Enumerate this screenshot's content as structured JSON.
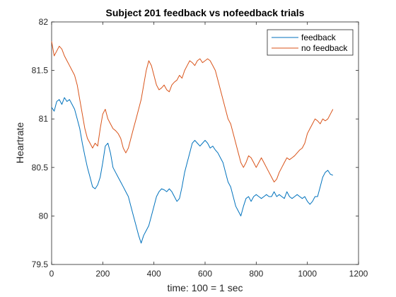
{
  "chart_data": {
    "type": "line",
    "title": "Subject 201 feedback vs nofeedback trials",
    "xlabel": "time: 100 = 1 sec",
    "ylabel": "Heartrate",
    "xlim": [
      0,
      1200
    ],
    "ylim": [
      79.5,
      82
    ],
    "xticks": [
      0,
      200,
      400,
      600,
      800,
      1000,
      1200
    ],
    "yticks": [
      79.5,
      80,
      80.5,
      81,
      81.5,
      82
    ],
    "xtick_labels": [
      "0",
      "200",
      "400",
      "600",
      "800",
      "1000",
      "1200"
    ],
    "ytick_labels": [
      "79.5",
      "80",
      "80.5",
      "81",
      "81.5",
      "82"
    ],
    "grid": false,
    "legend_position": "top-right",
    "series": [
      {
        "name": "feedback",
        "color": "#0072BD",
        "x": [
          0,
          10,
          20,
          30,
          40,
          50,
          60,
          70,
          80,
          90,
          100,
          110,
          120,
          130,
          140,
          150,
          160,
          170,
          180,
          190,
          200,
          210,
          220,
          230,
          240,
          250,
          260,
          270,
          280,
          290,
          300,
          310,
          320,
          330,
          340,
          350,
          360,
          370,
          380,
          390,
          400,
          410,
          420,
          430,
          440,
          450,
          460,
          470,
          480,
          490,
          500,
          510,
          520,
          530,
          540,
          550,
          560,
          570,
          580,
          590,
          600,
          610,
          620,
          630,
          640,
          650,
          660,
          670,
          680,
          690,
          700,
          710,
          720,
          730,
          740,
          750,
          760,
          770,
          780,
          790,
          800,
          810,
          820,
          830,
          840,
          850,
          860,
          870,
          880,
          890,
          900,
          910,
          920,
          930,
          940,
          950,
          960,
          970,
          980,
          990,
          1000,
          1010,
          1020,
          1030,
          1040,
          1050,
          1060,
          1070,
          1080,
          1090,
          1100
        ],
        "y": [
          81.12,
          81.08,
          81.18,
          81.2,
          81.15,
          81.22,
          81.18,
          81.2,
          81.15,
          81.1,
          81.0,
          80.9,
          80.75,
          80.62,
          80.5,
          80.4,
          80.3,
          80.28,
          80.32,
          80.4,
          80.55,
          80.72,
          80.75,
          80.65,
          80.5,
          80.45,
          80.4,
          80.35,
          80.3,
          80.25,
          80.2,
          80.1,
          80.0,
          79.9,
          79.8,
          79.72,
          79.8,
          79.85,
          79.9,
          80.0,
          80.1,
          80.2,
          80.25,
          80.28,
          80.27,
          80.25,
          80.28,
          80.25,
          80.2,
          80.15,
          80.18,
          80.3,
          80.45,
          80.55,
          80.65,
          80.75,
          80.78,
          80.75,
          80.72,
          80.75,
          80.78,
          80.75,
          80.7,
          80.72,
          80.68,
          80.65,
          80.6,
          80.55,
          80.45,
          80.35,
          80.3,
          80.2,
          80.1,
          80.05,
          80.0,
          80.1,
          80.18,
          80.2,
          80.15,
          80.2,
          80.22,
          80.2,
          80.18,
          80.2,
          80.22,
          80.2,
          80.2,
          80.25,
          80.2,
          80.22,
          80.2,
          80.18,
          80.25,
          80.2,
          80.18,
          80.2,
          80.22,
          80.2,
          80.18,
          80.2,
          80.15,
          80.12,
          80.15,
          80.2,
          80.2,
          80.3,
          80.4,
          80.45,
          80.47,
          80.43,
          80.42
        ]
      },
      {
        "name": "no feedback",
        "color": "#D95319",
        "x": [
          0,
          10,
          20,
          30,
          40,
          50,
          60,
          70,
          80,
          90,
          100,
          110,
          120,
          130,
          140,
          150,
          160,
          170,
          180,
          190,
          200,
          210,
          220,
          230,
          240,
          250,
          260,
          270,
          280,
          290,
          300,
          310,
          320,
          330,
          340,
          350,
          360,
          370,
          380,
          390,
          400,
          410,
          420,
          430,
          440,
          450,
          460,
          470,
          480,
          490,
          500,
          510,
          520,
          530,
          540,
          550,
          560,
          570,
          580,
          590,
          600,
          610,
          620,
          630,
          640,
          650,
          660,
          670,
          680,
          690,
          700,
          710,
          720,
          730,
          740,
          750,
          760,
          770,
          780,
          790,
          800,
          810,
          820,
          830,
          840,
          850,
          860,
          870,
          880,
          890,
          900,
          910,
          920,
          930,
          940,
          950,
          960,
          970,
          980,
          990,
          1000,
          1010,
          1020,
          1030,
          1040,
          1050,
          1060,
          1070,
          1080,
          1090,
          1100
        ],
        "y": [
          81.8,
          81.65,
          81.7,
          81.75,
          81.72,
          81.65,
          81.6,
          81.55,
          81.5,
          81.45,
          81.35,
          81.2,
          81.05,
          80.9,
          80.8,
          80.75,
          80.7,
          80.75,
          80.72,
          80.9,
          81.05,
          81.1,
          81.0,
          80.95,
          80.9,
          80.88,
          80.85,
          80.8,
          80.7,
          80.65,
          80.7,
          80.8,
          80.9,
          81.0,
          81.1,
          81.2,
          81.35,
          81.5,
          81.6,
          81.55,
          81.45,
          81.35,
          81.3,
          81.32,
          81.35,
          81.3,
          81.28,
          81.35,
          81.38,
          81.4,
          81.45,
          81.42,
          81.5,
          81.55,
          81.6,
          81.58,
          81.55,
          81.6,
          81.62,
          81.58,
          81.6,
          81.62,
          81.6,
          81.55,
          81.5,
          81.4,
          81.3,
          81.2,
          81.1,
          81.0,
          80.95,
          80.85,
          80.75,
          80.65,
          80.55,
          80.5,
          80.55,
          80.62,
          80.6,
          80.55,
          80.5,
          80.55,
          80.6,
          80.55,
          80.5,
          80.45,
          80.4,
          80.35,
          80.38,
          80.45,
          80.5,
          80.55,
          80.6,
          80.58,
          80.6,
          80.62,
          80.65,
          80.68,
          80.7,
          80.75,
          80.85,
          80.9,
          80.95,
          81.0,
          80.98,
          80.95,
          81.0,
          80.98,
          81.0,
          81.05,
          81.1
        ]
      }
    ]
  }
}
